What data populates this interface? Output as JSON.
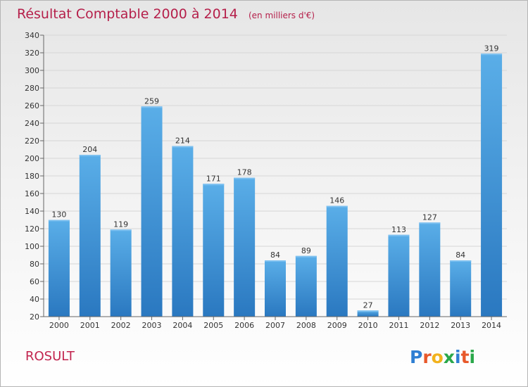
{
  "title": "Résultat Comptable 2000 à 2014",
  "unit": "(en milliers d'€)",
  "commune": "ROSULT",
  "logo": {
    "text": "Proxiti",
    "colors": [
      "#2f7fd3",
      "#e8592b",
      "#f2b21c",
      "#2aa84a",
      "#2f7fd3",
      "#e8592b",
      "#2aa84a"
    ]
  },
  "colors": {
    "bar": "#4a9de0",
    "bar_dark": "#2a78c0",
    "title": "#b51f4a"
  },
  "chart_data": {
    "type": "bar",
    "title": "Résultat Comptable 2000 à 2014",
    "categories": [
      "2000",
      "2001",
      "2002",
      "2003",
      "2004",
      "2005",
      "2006",
      "2007",
      "2008",
      "2009",
      "2010",
      "2011",
      "2012",
      "2013",
      "2014"
    ],
    "values": [
      130,
      204,
      119,
      259,
      214,
      171,
      178,
      84,
      89,
      146,
      27,
      113,
      127,
      84,
      319
    ],
    "ylim": [
      20,
      340
    ],
    "yticks": [
      20,
      40,
      60,
      80,
      100,
      120,
      140,
      160,
      180,
      200,
      220,
      240,
      260,
      280,
      300,
      320,
      340
    ],
    "grid": true,
    "legend": "none"
  }
}
